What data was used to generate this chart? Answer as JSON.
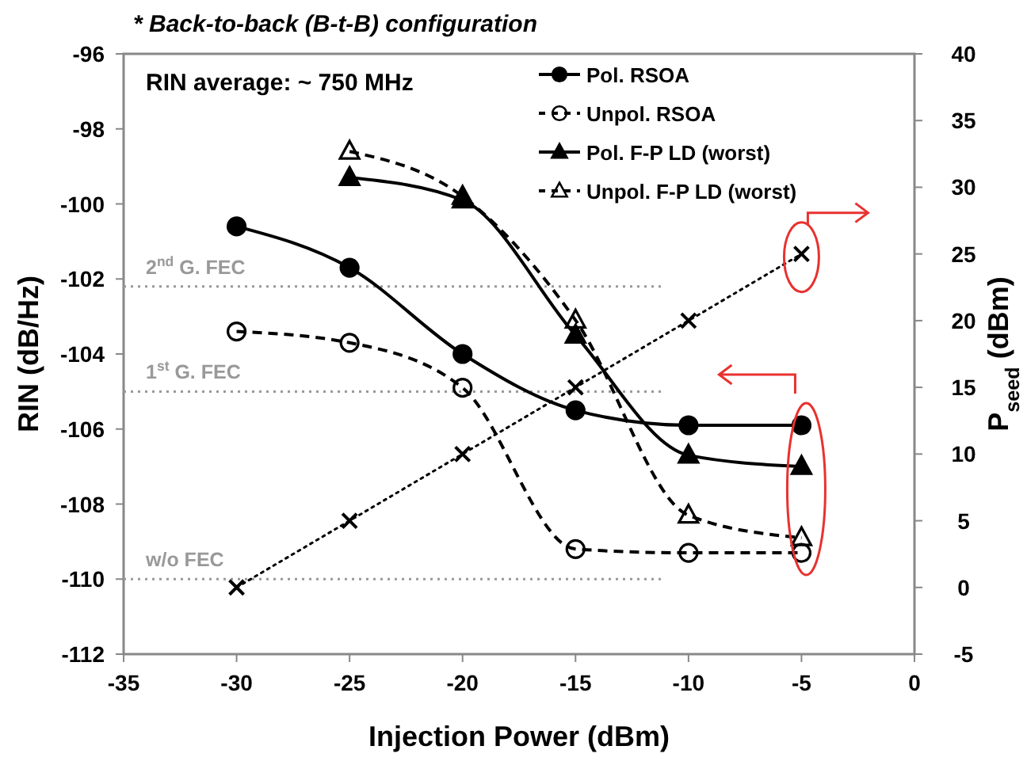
{
  "chart_data": {
    "type": "line",
    "title": "* Back-to-back (B-t-B) configuration",
    "xlabel": "Injection Power (dBm)",
    "ylabel": "RIN (dB/Hz)",
    "y2label": "P$_{seed}$ (dBm)",
    "annotations": [
      "RIN average: ~ 750 MHz"
    ],
    "x": [
      -30,
      -25,
      -20,
      -15,
      -10,
      -5
    ],
    "series": [
      {
        "name": "Pol. RSOA",
        "color": "#000000",
        "marker": "circle",
        "line_style": "solid",
        "values": [
          -100.6,
          -101.7,
          -104.0,
          -105.5,
          -105.9,
          -105.9
        ]
      },
      {
        "name": "Unpol. RSOA",
        "color": "#000000",
        "marker": "circle",
        "line_style": "dashed",
        "values": [
          -103.4,
          -103.7,
          -104.9,
          -109.2,
          -109.3,
          -109.3
        ]
      },
      {
        "name": "Pol. F-P LD (worst)",
        "color": "#000000",
        "marker": "triangle",
        "line_style": "solid",
        "x": [
          -25,
          -20,
          -15,
          -10,
          -5
        ],
        "values": [
          -99.3,
          -99.9,
          -103.5,
          -106.7,
          -107.0
        ]
      },
      {
        "name": "Unpol. F-P LD (worst)",
        "color": "#000000",
        "marker": "triangle",
        "line_style": "dashed",
        "x": [
          -25,
          -20,
          -15,
          -10,
          -5
        ],
        "values": [
          -98.6,
          -99.8,
          -103.1,
          -108.3,
          -108.9
        ]
      },
      {
        "color": "#000000",
        "marker": "cross",
        "line_style": "dotted",
        "axis": "y2",
        "values": [
          0,
          5,
          10,
          15,
          20,
          25
        ]
      }
    ],
    "xlim": [
      -35,
      0
    ],
    "xticks": [
      -35,
      -30,
      -25,
      -20,
      -15,
      -10,
      -5,
      0
    ],
    "ylim": [
      -112,
      -96
    ],
    "yticks": [
      -112,
      -110,
      -108,
      -106,
      -104,
      -102,
      -100,
      -98,
      -96
    ],
    "y2lim": [
      -5,
      40
    ],
    "y2ticks": [
      -5,
      0,
      5,
      10,
      15,
      20,
      25,
      30,
      35,
      40
    ],
    "ref_lines": [
      {
        "axis": "y",
        "value": -102.2,
        "label": "2$^{nd}$ G. FEC",
        "color": "#999999",
        "line_style": "dotted"
      },
      {
        "axis": "y",
        "value": -105,
        "label": "1$^{st}$ G. FEC",
        "color": "#999999",
        "line_style": "dotted"
      },
      {
        "axis": "y",
        "value": -110,
        "label": "w/o FEC",
        "color": "#999999",
        "line_style": "dotted"
      }
    ],
    "legend": "top right",
    "grid": false
  }
}
